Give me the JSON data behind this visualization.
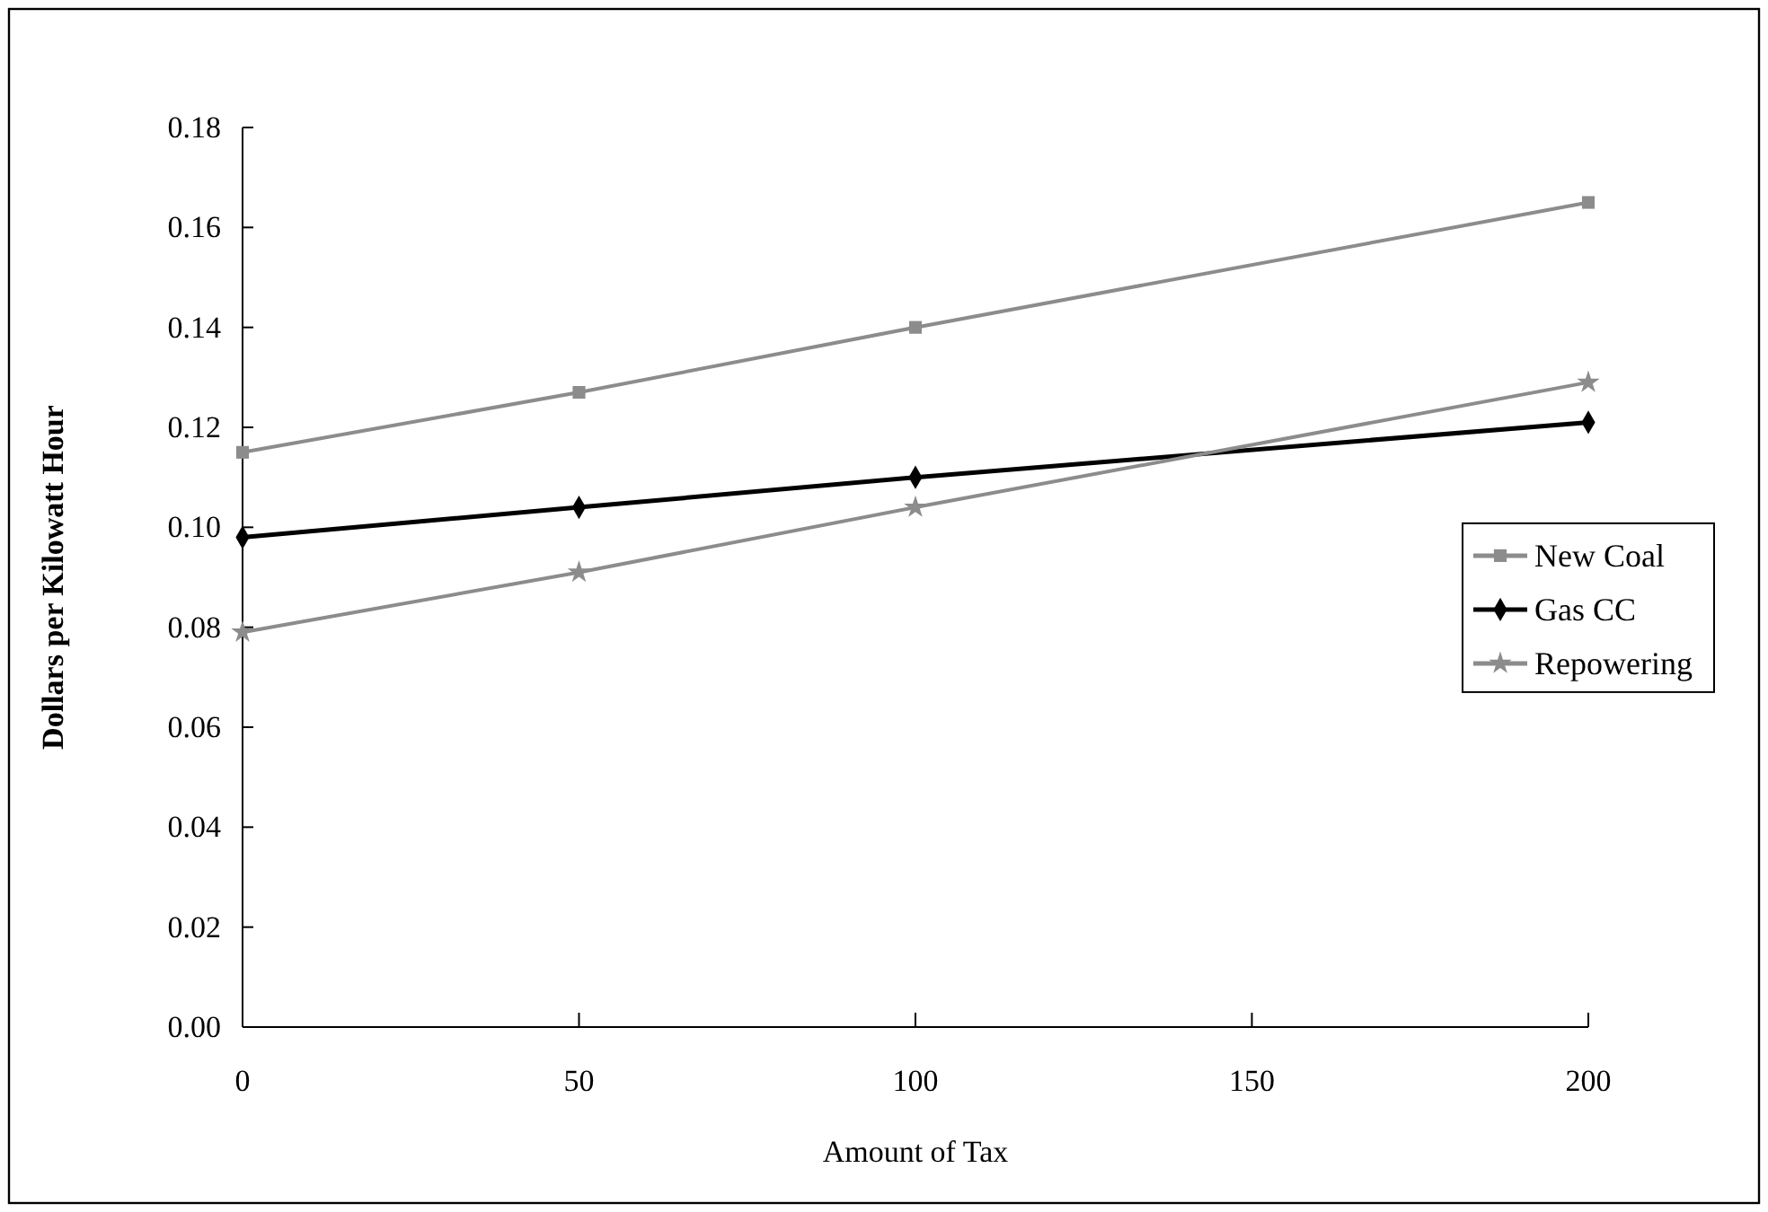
{
  "chart_data": {
    "type": "line",
    "xlabel": "Amount of Tax",
    "ylabel": "Dollars per Kilowatt Hour",
    "x": [
      0,
      50,
      100,
      200
    ],
    "series": [
      {
        "name": "New Coal",
        "color": "#8c8c8c",
        "marker": "square",
        "values": [
          0.115,
          0.127,
          0.14,
          0.165
        ]
      },
      {
        "name": "Gas CC",
        "color": "#000000",
        "marker": "diamond",
        "values": [
          0.098,
          0.104,
          0.11,
          0.121
        ]
      },
      {
        "name": "Repowering",
        "color": "#8c8c8c",
        "marker": "star",
        "values": [
          0.079,
          0.091,
          0.104,
          0.129
        ]
      }
    ],
    "xlim": [
      0,
      200
    ],
    "xticks": [
      0,
      50,
      100,
      150,
      200
    ],
    "ylim": [
      0,
      0.18
    ],
    "yticks": [
      {
        "value": 0,
        "label": "0.00"
      },
      {
        "value": 0.02,
        "label": "0.02"
      },
      {
        "value": 0.04,
        "label": "0.04"
      },
      {
        "value": 0.06,
        "label": "0.06"
      },
      {
        "value": 0.08,
        "label": "0.08"
      },
      {
        "value": 0.1,
        "label": "0.10"
      },
      {
        "value": 0.12,
        "label": "0.12"
      },
      {
        "value": 0.14,
        "label": "0.14"
      },
      {
        "value": 0.16,
        "label": "0.16"
      },
      {
        "value": 0.18,
        "label": "0.18"
      }
    ],
    "grid": false,
    "legend": "right",
    "line_style": "solid"
  }
}
